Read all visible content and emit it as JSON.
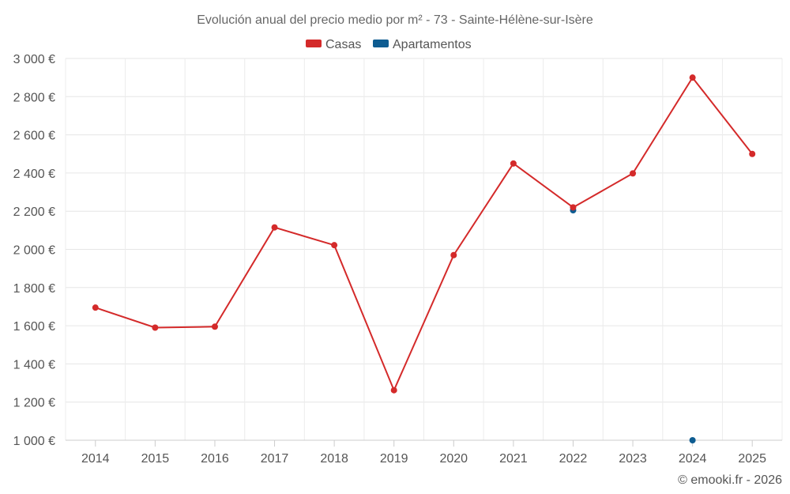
{
  "chart_data": {
    "type": "line",
    "title": "Evolución anual del precio medio por m² - 73 - Sainte-Hélène-sur-Isère",
    "categories": [
      "2014",
      "2015",
      "2016",
      "2017",
      "2018",
      "2019",
      "2020",
      "2021",
      "2022",
      "2023",
      "2024",
      "2025"
    ],
    "y_ticks": [
      1000,
      1200,
      1400,
      1600,
      1800,
      2000,
      2200,
      2400,
      2600,
      2800,
      3000
    ],
    "y_tick_labels": [
      "1 000 €",
      "1 200 €",
      "1 400 €",
      "1 600 €",
      "1 800 €",
      "2 000 €",
      "2 200 €",
      "2 400 €",
      "2 600 €",
      "2 800 €",
      "3 000 €"
    ],
    "ylim": [
      1000,
      3000
    ],
    "grid": true,
    "legend_position": "top-center",
    "series": [
      {
        "name": "Casas",
        "color": "#d42a2a",
        "values": [
          1695,
          1590,
          1595,
          2115,
          2022,
          1262,
          1970,
          2450,
          2220,
          2398,
          2900,
          2500
        ]
      },
      {
        "name": "Apartamentos",
        "color": "#0e5c91",
        "values": [
          null,
          null,
          null,
          null,
          null,
          null,
          null,
          null,
          2205,
          null,
          1000,
          null
        ]
      }
    ]
  },
  "credit": "© emooki.fr - 2026"
}
